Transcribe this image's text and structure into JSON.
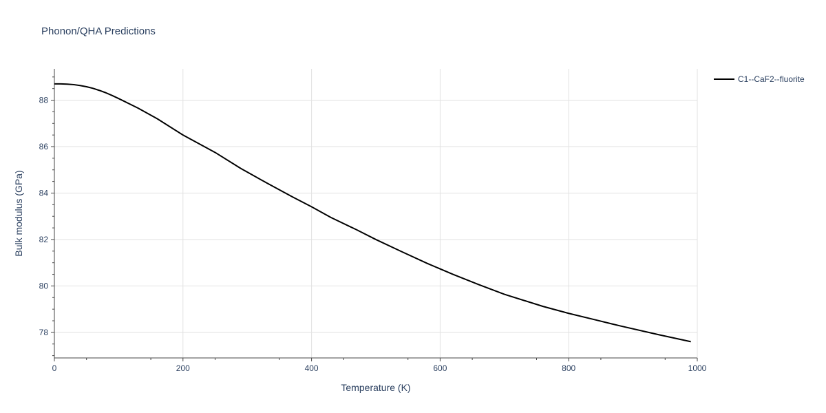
{
  "chart_data": {
    "type": "line",
    "title": "Phonon/QHA Predictions",
    "xlabel": "Temperature (K)",
    "ylabel": "Bulk modulus (GPa)",
    "xlim": [
      0,
      1000
    ],
    "ylim": [
      76.9,
      89.35
    ],
    "x_ticks": [
      0,
      200,
      400,
      600,
      800,
      1000
    ],
    "y_ticks": [
      78,
      80,
      82,
      84,
      86,
      88
    ],
    "grid": true,
    "legend_position": "top-right",
    "series": [
      {
        "name": "C1--CaF2--fluorite",
        "color": "#000000",
        "x": [
          0,
          10,
          20,
          30,
          40,
          50,
          60,
          70,
          80,
          90,
          100,
          130,
          160,
          200,
          250,
          290,
          330,
          370,
          400,
          430,
          470,
          500,
          540,
          580,
          620,
          660,
          700,
          760,
          800,
          840,
          880,
          940,
          990
        ],
        "y": [
          88.7,
          88.7,
          88.69,
          88.67,
          88.63,
          88.58,
          88.51,
          88.42,
          88.32,
          88.2,
          88.07,
          87.66,
          87.2,
          86.5,
          85.75,
          85.06,
          84.44,
          83.84,
          83.41,
          82.95,
          82.42,
          82.0,
          81.48,
          80.97,
          80.5,
          80.06,
          79.64,
          79.12,
          78.82,
          78.55,
          78.28,
          77.9,
          77.6
        ]
      }
    ]
  }
}
